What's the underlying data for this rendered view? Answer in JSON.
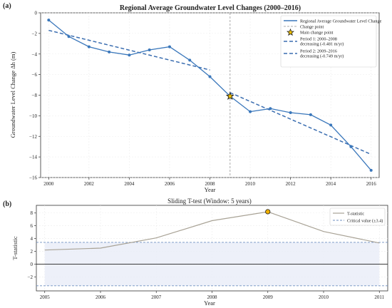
{
  "chart_data": [
    {
      "type": "line",
      "panel_label": "(a)",
      "title": "Regional Average Groundwater Level Changes (2000–2016)",
      "xlabel": "Year",
      "ylabel": "Groundwater Level Change Δh (m)",
      "xlim": [
        1999.6,
        2016.4
      ],
      "ylim": [
        -16,
        0
      ],
      "xticks": [
        "2000",
        "2002",
        "2004",
        "2006",
        "2008",
        "2010",
        "2012",
        "2014",
        "2016"
      ],
      "yticks": [
        "0",
        "−2",
        "−4",
        "−6",
        "−8",
        "−10",
        "−12",
        "−14",
        "−16"
      ],
      "grid": true,
      "legend_position": "top-right",
      "x": [
        2000,
        2001,
        2002,
        2003,
        2004,
        2005,
        2006,
        2007,
        2008,
        2009,
        2010,
        2011,
        2012,
        2013,
        2014,
        2015,
        2016
      ],
      "series": [
        {
          "name": "Regional Average Groundwater Level Change",
          "values": [
            -0.7,
            -2.3,
            -3.3,
            -3.8,
            -4.1,
            -3.6,
            -3.3,
            -4.6,
            -6.2,
            -8.1,
            -9.6,
            -9.3,
            -9.7,
            -9.9,
            -10.9,
            -13.0,
            -15.3
          ]
        }
      ],
      "change_point": {
        "label": "Change point",
        "x": 2009
      },
      "main_change_point": {
        "label": "Main change point",
        "x": 2009,
        "y": -8.1
      },
      "trends": [
        {
          "label": "Period 1: 2000–2008",
          "label2": "decreasing (-0.481 m/yr)",
          "x": [
            2000,
            2008
          ],
          "y": [
            -1.7,
            -5.55
          ]
        },
        {
          "label": "Period 2: 2009–2016",
          "label2": "decreasing (-0.749 m/yr)",
          "x": [
            2009,
            2016
          ],
          "y": [
            -7.75,
            -13.75
          ]
        }
      ],
      "colors": {
        "series": "#3a77bb",
        "trend": "#3a6db0",
        "change": "#aaaaaa",
        "star": "#f0c000"
      }
    },
    {
      "type": "line",
      "panel_label": "(b)",
      "title": "Sliding T-test (Window: 5 years)",
      "xlabel": "Year",
      "ylabel": "T-statistic",
      "xlim": [
        2004.85,
        2011.15
      ],
      "ylim": [
        -4.2,
        9.2
      ],
      "xticks": [
        "2005",
        "2006",
        "2007",
        "2008",
        "2009",
        "2010",
        "2011"
      ],
      "yticks": [
        "−2",
        "0",
        "2",
        "4",
        "6",
        "8"
      ],
      "grid": true,
      "legend_position": "top-right",
      "x": [
        2005,
        2006,
        2007,
        2008,
        2009,
        2010,
        2011
      ],
      "series": [
        {
          "name": "T-statistic",
          "values": [
            2.2,
            2.5,
            4.1,
            6.8,
            8.2,
            5.1,
            3.3
          ]
        }
      ],
      "critical_value": 3.4,
      "critical_label": "Critical value (±3.4)",
      "highlight_point": {
        "x": 2009,
        "y": 8.2
      },
      "colors": {
        "series": "#a8a295",
        "critical": "#6f8fc0",
        "band": "#e8ecf7",
        "marker": "#f0b000"
      }
    }
  ]
}
